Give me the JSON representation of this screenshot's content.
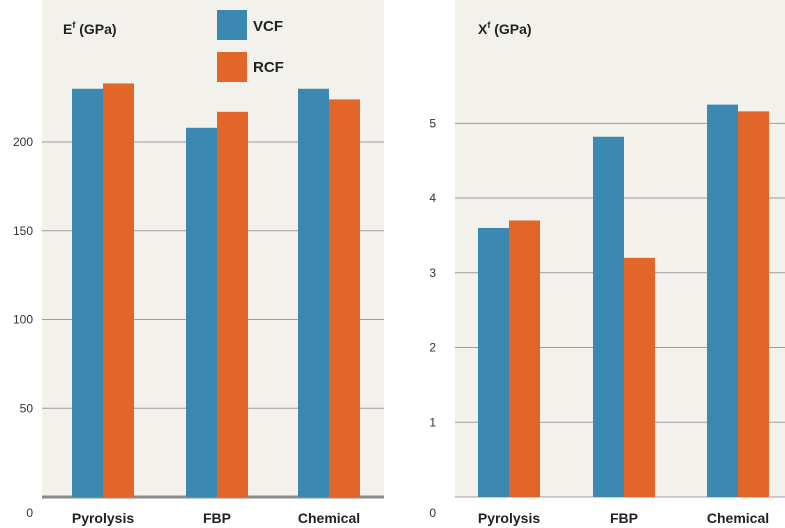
{
  "colors": {
    "vcf": "#3b89b2",
    "rcf": "#e2662a",
    "panel_bg": "#f3f1ec",
    "grid": "#9c9c9c"
  },
  "legend": [
    {
      "label": "VCF",
      "color": "#3b89b2"
    },
    {
      "label": "RCF",
      "color": "#e2662a"
    }
  ],
  "chart_data": [
    {
      "type": "bar",
      "title_main": "E",
      "title_sup": "f",
      "title_rest": " (GPa)",
      "categories": [
        "Pyrolysis",
        "FBP",
        "Chemical"
      ],
      "series": [
        {
          "name": "VCF",
          "values": [
            230,
            208,
            230
          ]
        },
        {
          "name": "RCF",
          "values": [
            233,
            217,
            224
          ]
        }
      ],
      "ylim": [
        0,
        280
      ],
      "yticks": [
        0,
        50,
        100,
        150,
        200
      ],
      "grid": true
    },
    {
      "type": "bar",
      "title_main": "X",
      "title_sup": "f",
      "title_rest": " (GPa)",
      "categories": [
        "Pyrolysis",
        "FBP",
        "Chemical"
      ],
      "series": [
        {
          "name": "VCF",
          "values": [
            3.6,
            4.82,
            5.25
          ]
        },
        {
          "name": "RCF",
          "values": [
            3.7,
            3.2,
            5.16
          ]
        }
      ],
      "ylim": [
        0,
        6.65
      ],
      "yticks": [
        0,
        1,
        2,
        3,
        4,
        5
      ],
      "grid": true
    }
  ]
}
